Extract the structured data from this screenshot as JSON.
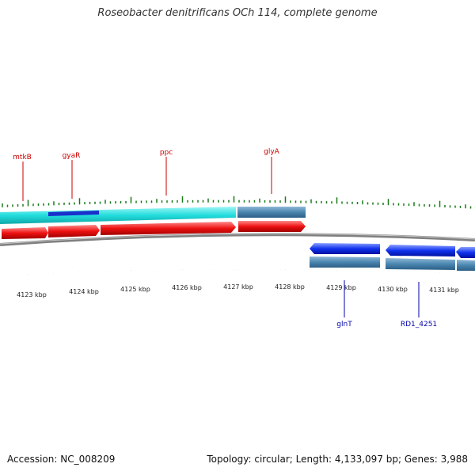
{
  "title": "Roseobacter denitrificans OCh 114, complete genome",
  "footer": {
    "accession": "Accession: NC_008209",
    "summary": "Topology: circular; Length: 4,133,097 bp; Genes: 3,988"
  },
  "kbp_labels": [
    "4123 kbp",
    "4124 kbp",
    "4125 kbp",
    "4126 kbp",
    "4127 kbp",
    "4128 kbp",
    "4129 kbp",
    "4130 kbp",
    "4131 kbp"
  ],
  "forward_gene_labels": [
    "mtkB",
    "gyaR",
    "ppc",
    "glyA"
  ],
  "reverse_gene_labels": [
    "glnT",
    "RD1_4251"
  ],
  "colors": {
    "forward_label": "#cc0000",
    "reverse_label": "#0000aa",
    "tick": "#1a7a1a",
    "cds_forward": "#ee1111",
    "cds_reverse": "#1133ee",
    "gene_cyan": "#22dddd",
    "gene_steel": "#4a86b0",
    "backbone": "#808080"
  }
}
